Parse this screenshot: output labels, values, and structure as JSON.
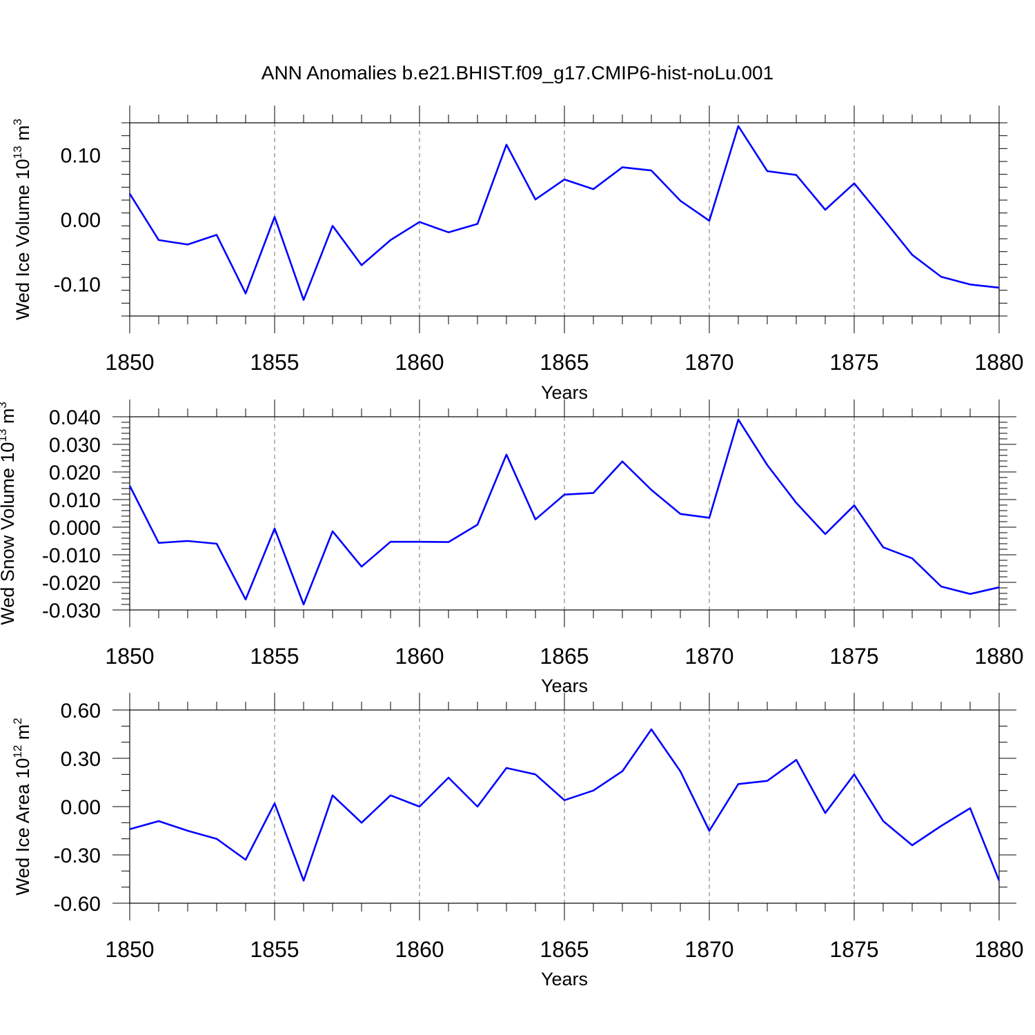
{
  "title": "ANN Anomalies b.e21.BHIST.f09_g17.CMIP6-hist-noLu.001",
  "chart_data": [
    {
      "type": "line",
      "ylabel": "Wed Ice Volume 10",
      "ylabel_exp": "13",
      "ylabel_unit": "m",
      "ylabel_unit_exp": "3",
      "xlabel": "Years",
      "xlim": [
        1850,
        1880
      ],
      "ylim": [
        -0.15,
        0.15
      ],
      "yticks": [
        -0.1,
        0.0,
        0.1
      ],
      "ytick_labels": [
        "-0.10",
        "0.00",
        "0.10"
      ],
      "yminor_step": 0.02,
      "xticks": [
        1850,
        1855,
        1860,
        1865,
        1870,
        1875,
        1880
      ],
      "xtick_labels": [
        "1850",
        "1855",
        "1860",
        "1865",
        "1870",
        "1875",
        "1880"
      ],
      "line_color": "#0000ff",
      "x": [
        1850,
        1851,
        1852,
        1853,
        1854,
        1855,
        1856,
        1857,
        1858,
        1859,
        1860,
        1861,
        1862,
        1863,
        1864,
        1865,
        1866,
        1867,
        1868,
        1869,
        1870,
        1871,
        1872,
        1873,
        1874,
        1875,
        1876,
        1877,
        1878,
        1879,
        1880
      ],
      "values": [
        0.04,
        -0.032,
        -0.039,
        -0.024,
        -0.115,
        0.004,
        -0.125,
        -0.01,
        -0.071,
        -0.032,
        -0.004,
        -0.02,
        -0.007,
        0.116,
        0.031,
        0.062,
        0.047,
        0.081,
        0.076,
        0.029,
        -0.002,
        0.145,
        0.075,
        0.069,
        0.015,
        0.056,
        0.001,
        -0.055,
        -0.089,
        -0.101,
        -0.106
      ]
    },
    {
      "type": "line",
      "ylabel": "Wed Snow Volume 10",
      "ylabel_exp": "13",
      "ylabel_unit": "m",
      "ylabel_unit_exp": "3",
      "xlabel": "Years",
      "xlim": [
        1850,
        1880
      ],
      "ylim": [
        -0.03,
        0.04
      ],
      "yticks": [
        -0.03,
        -0.02,
        -0.01,
        0.0,
        0.01,
        0.02,
        0.03,
        0.04
      ],
      "ytick_labels": [
        "-0.030",
        "-0.020",
        "-0.010",
        "0.000",
        "0.010",
        "0.020",
        "0.030",
        "0.040"
      ],
      "yminor_step": 0.002,
      "xticks": [
        1850,
        1855,
        1860,
        1865,
        1870,
        1875,
        1880
      ],
      "xtick_labels": [
        "1850",
        "1855",
        "1860",
        "1865",
        "1870",
        "1875",
        "1880"
      ],
      "line_color": "#0000ff",
      "x": [
        1850,
        1851,
        1852,
        1853,
        1854,
        1855,
        1856,
        1857,
        1858,
        1859,
        1860,
        1861,
        1862,
        1863,
        1864,
        1865,
        1866,
        1867,
        1868,
        1869,
        1870,
        1871,
        1872,
        1873,
        1874,
        1875,
        1876,
        1877,
        1878,
        1879,
        1880
      ],
      "values": [
        0.015,
        -0.0057,
        -0.005,
        -0.006,
        -0.0262,
        -0.0005,
        -0.028,
        -0.0015,
        -0.0143,
        -0.0053,
        -0.0053,
        -0.0054,
        0.0009,
        0.0263,
        0.0028,
        0.0118,
        0.0124,
        0.0238,
        0.0135,
        0.0048,
        0.0034,
        0.039,
        0.0225,
        0.0088,
        -0.0025,
        0.0079,
        -0.0073,
        -0.0113,
        -0.0215,
        -0.0242,
        -0.0218
      ]
    },
    {
      "type": "line",
      "ylabel": "Wed Ice Area 10",
      "ylabel_exp": "12",
      "ylabel_unit": "m",
      "ylabel_unit_exp": "2",
      "xlabel": "Years",
      "xlim": [
        1850,
        1880
      ],
      "ylim": [
        -0.6,
        0.6
      ],
      "yticks": [
        -0.6,
        -0.3,
        0.0,
        0.3,
        0.6
      ],
      "ytick_labels": [
        "-0.60",
        "-0.30",
        "0.00",
        "0.30",
        "0.60"
      ],
      "yminor_step": 0.1,
      "xticks": [
        1850,
        1855,
        1860,
        1865,
        1870,
        1875,
        1880
      ],
      "xtick_labels": [
        "1850",
        "1855",
        "1860",
        "1865",
        "1870",
        "1875",
        "1880"
      ],
      "line_color": "#0000ff",
      "x": [
        1850,
        1851,
        1852,
        1853,
        1854,
        1855,
        1856,
        1857,
        1858,
        1859,
        1860,
        1861,
        1862,
        1863,
        1864,
        1865,
        1866,
        1867,
        1868,
        1869,
        1870,
        1871,
        1872,
        1873,
        1874,
        1875,
        1876,
        1877,
        1878,
        1879,
        1880
      ],
      "values": [
        -0.14,
        -0.09,
        -0.15,
        -0.2,
        -0.33,
        0.02,
        -0.46,
        0.07,
        -0.1,
        0.07,
        0.0,
        0.18,
        0.0,
        0.24,
        0.2,
        0.04,
        0.1,
        0.22,
        0.48,
        0.22,
        -0.15,
        0.14,
        0.16,
        0.29,
        -0.04,
        0.2,
        -0.09,
        -0.24,
        -0.12,
        -0.01,
        -0.46
      ]
    }
  ]
}
